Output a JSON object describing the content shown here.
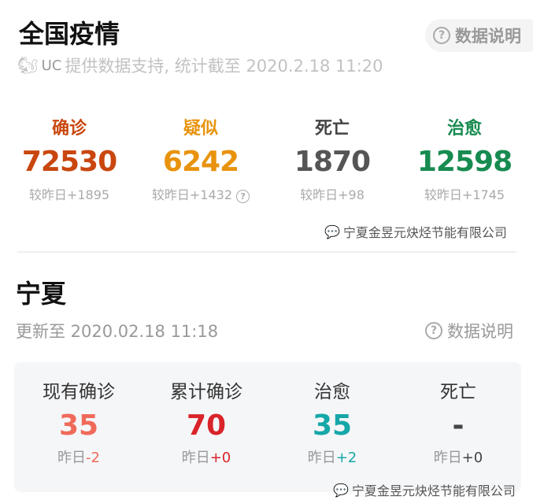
{
  "national": {
    "title": "全国疫情",
    "help_label": "数据说明",
    "source_logo": "UC",
    "source_text": "提供数据支持, 统计截至 2020.2.18 11:20",
    "stats": [
      {
        "label": "确诊",
        "value": "72530",
        "delta": "较昨日+1895",
        "color": "#c9470f"
      },
      {
        "label": "疑似",
        "value": "6242",
        "delta": "较昨日+1432",
        "color": "#e8930d"
      },
      {
        "label": "死亡",
        "value": "1870",
        "delta": "较昨日+98",
        "color": "#555555"
      },
      {
        "label": "治愈",
        "value": "12598",
        "delta": "较昨日+1745",
        "color": "#178b50"
      }
    ],
    "watermark": "宁夏金昱元炔烃节能有限公司"
  },
  "region": {
    "title": "宁夏",
    "updated": "更新至 2020.02.18 11:18",
    "help_label": "数据说明",
    "stats": [
      {
        "label": "现有确诊",
        "value": "35",
        "delta_prefix": "昨日",
        "delta": "-2",
        "color": "#f06a5a"
      },
      {
        "label": "累计确诊",
        "value": "70",
        "delta_prefix": "昨日",
        "delta": "+0",
        "color": "#d9242a"
      },
      {
        "label": "治愈",
        "value": "35",
        "delta_prefix": "昨日",
        "delta": "+2",
        "color": "#16a7a8"
      },
      {
        "label": "死亡",
        "value": "-",
        "delta_prefix": "昨日",
        "delta": "+0",
        "color": "#444444"
      }
    ],
    "watermark": "宁夏金昱元炔烃节能有限公司"
  }
}
